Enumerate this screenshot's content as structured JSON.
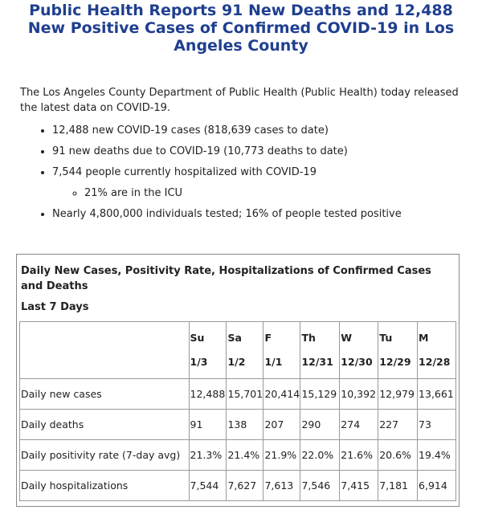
{
  "title": "Public Health Reports 91 New Deaths and 12,488 New Positive Cases of Confirmed COVID-19 in Los Angeles County",
  "intro": "The Los Angeles County Department of Public Health (Public Health) today released the latest data on COVID-19.",
  "bullets": [
    "12,488 new COVID-19 cases (818,639 cases to date)",
    "91 new deaths due to COVID-19 (10,773 deaths to date)",
    "7,544 people currently hospitalized with COVID-19",
    "Nearly 4,800,000 individuals tested; 16% of people tested positive"
  ],
  "sub_bullet": "21% are in the ICU",
  "table": {
    "caption": "Daily New Cases, Positivity Rate, Hospitalizations of Confirmed Cases and Deaths",
    "subcaption": "Last 7 Days",
    "days": [
      {
        "day": "Su",
        "date": "1/3"
      },
      {
        "day": "Sa",
        "date": "1/2"
      },
      {
        "day": "F",
        "date": "1/1"
      },
      {
        "day": "Th",
        "date": "12/31"
      },
      {
        "day": "W",
        "date": "12/30"
      },
      {
        "day": "Tu",
        "date": "12/29"
      },
      {
        "day": "M",
        "date": "12/28"
      }
    ],
    "rows": [
      {
        "label": "Daily new cases",
        "values": [
          "12,488",
          "15,701",
          "20,414",
          "15,129",
          "10,392",
          "12,979",
          "13,661"
        ]
      },
      {
        "label": "Daily deaths",
        "values": [
          "91",
          "138",
          "207",
          "290",
          "274",
          "227",
          "73"
        ]
      },
      {
        "label": "Daily positivity rate (7-day avg)",
        "values": [
          "21.3%",
          "21.4%",
          "21.9%",
          "22.0%",
          "21.6%",
          "20.6%",
          "19.4%"
        ]
      },
      {
        "label": "Daily hospitalizations",
        "values": [
          "7,544",
          "7,627",
          "7,613",
          "7,546",
          "7,415",
          "7,181",
          "6,914"
        ]
      }
    ]
  }
}
